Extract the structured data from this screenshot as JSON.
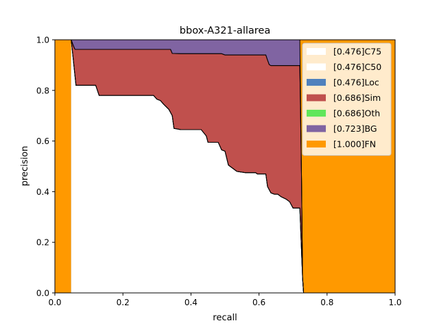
{
  "chart_data": {
    "type": "area",
    "title": "bbox-A321-allarea",
    "xlabel": "recall",
    "ylabel": "precision",
    "xlim": [
      0,
      1
    ],
    "ylim": [
      0,
      1
    ],
    "x_ticks": [
      "0.0",
      "0.2",
      "0.4",
      "0.6",
      "0.8",
      "1.0"
    ],
    "y_ticks": [
      "0.0",
      "0.2",
      "0.4",
      "0.6",
      "0.8",
      "1.0"
    ],
    "grid": false,
    "legend_position": "top-right",
    "series": [
      {
        "name": "[0.476]C75",
        "color": "#ffffff",
        "points": [
          [
            0.048,
            1.0
          ],
          [
            0.062,
            0.82
          ],
          [
            0.12,
            0.82
          ],
          [
            0.13,
            0.78
          ],
          [
            0.29,
            0.78
          ],
          [
            0.3,
            0.765
          ],
          [
            0.31,
            0.76
          ],
          [
            0.32,
            0.745
          ],
          [
            0.335,
            0.725
          ],
          [
            0.345,
            0.7
          ],
          [
            0.35,
            0.65
          ],
          [
            0.37,
            0.645
          ],
          [
            0.43,
            0.645
          ],
          [
            0.445,
            0.62
          ],
          [
            0.45,
            0.595
          ],
          [
            0.48,
            0.595
          ],
          [
            0.49,
            0.565
          ],
          [
            0.5,
            0.56
          ],
          [
            0.51,
            0.505
          ],
          [
            0.525,
            0.49
          ],
          [
            0.535,
            0.48
          ],
          [
            0.56,
            0.475
          ],
          [
            0.59,
            0.475
          ],
          [
            0.595,
            0.47
          ],
          [
            0.62,
            0.47
          ],
          [
            0.625,
            0.42
          ],
          [
            0.635,
            0.395
          ],
          [
            0.645,
            0.39
          ],
          [
            0.655,
            0.39
          ],
          [
            0.665,
            0.38
          ],
          [
            0.68,
            0.37
          ],
          [
            0.69,
            0.36
          ],
          [
            0.7,
            0.335
          ],
          [
            0.72,
            0.335
          ],
          [
            0.728,
            0.06
          ],
          [
            0.731,
            0.0
          ]
        ]
      },
      {
        "name": "[0.476]C50",
        "color": "#ffffff",
        "points": [
          [
            0.048,
            1.0
          ],
          [
            0.062,
            0.82
          ],
          [
            0.12,
            0.82
          ],
          [
            0.13,
            0.78
          ],
          [
            0.29,
            0.78
          ],
          [
            0.3,
            0.765
          ],
          [
            0.31,
            0.76
          ],
          [
            0.32,
            0.745
          ],
          [
            0.335,
            0.725
          ],
          [
            0.345,
            0.7
          ],
          [
            0.35,
            0.65
          ],
          [
            0.37,
            0.645
          ],
          [
            0.43,
            0.645
          ],
          [
            0.445,
            0.62
          ],
          [
            0.45,
            0.595
          ],
          [
            0.48,
            0.595
          ],
          [
            0.49,
            0.565
          ],
          [
            0.5,
            0.56
          ],
          [
            0.51,
            0.505
          ],
          [
            0.525,
            0.49
          ],
          [
            0.535,
            0.48
          ],
          [
            0.56,
            0.475
          ],
          [
            0.59,
            0.475
          ],
          [
            0.595,
            0.47
          ],
          [
            0.62,
            0.47
          ],
          [
            0.625,
            0.42
          ],
          [
            0.635,
            0.395
          ],
          [
            0.645,
            0.39
          ],
          [
            0.655,
            0.39
          ],
          [
            0.665,
            0.38
          ],
          [
            0.68,
            0.37
          ],
          [
            0.69,
            0.36
          ],
          [
            0.7,
            0.335
          ],
          [
            0.72,
            0.335
          ],
          [
            0.728,
            0.06
          ],
          [
            0.731,
            0.0
          ]
        ]
      },
      {
        "name": "[0.476]Loc",
        "color": "#4f81bd",
        "points": [
          [
            0.048,
            1.0
          ],
          [
            0.062,
            0.82
          ],
          [
            0.12,
            0.82
          ],
          [
            0.13,
            0.78
          ],
          [
            0.29,
            0.78
          ],
          [
            0.3,
            0.765
          ],
          [
            0.31,
            0.76
          ],
          [
            0.32,
            0.745
          ],
          [
            0.335,
            0.725
          ],
          [
            0.345,
            0.7
          ],
          [
            0.35,
            0.65
          ],
          [
            0.37,
            0.645
          ],
          [
            0.43,
            0.645
          ],
          [
            0.445,
            0.62
          ],
          [
            0.45,
            0.595
          ],
          [
            0.48,
            0.595
          ],
          [
            0.49,
            0.565
          ],
          [
            0.5,
            0.56
          ],
          [
            0.51,
            0.505
          ],
          [
            0.525,
            0.49
          ],
          [
            0.535,
            0.48
          ],
          [
            0.56,
            0.475
          ],
          [
            0.59,
            0.475
          ],
          [
            0.595,
            0.47
          ],
          [
            0.62,
            0.47
          ],
          [
            0.625,
            0.42
          ],
          [
            0.635,
            0.395
          ],
          [
            0.645,
            0.39
          ],
          [
            0.655,
            0.39
          ],
          [
            0.665,
            0.38
          ],
          [
            0.68,
            0.37
          ],
          [
            0.69,
            0.36
          ],
          [
            0.7,
            0.335
          ],
          [
            0.72,
            0.335
          ],
          [
            0.728,
            0.06
          ],
          [
            0.731,
            0.0
          ]
        ]
      },
      {
        "name": "[0.686]Sim",
        "color": "#c0504d",
        "points": [
          [
            0.048,
            1.0
          ],
          [
            0.052,
            0.985
          ],
          [
            0.058,
            0.965
          ],
          [
            0.06,
            0.962
          ],
          [
            0.34,
            0.962
          ],
          [
            0.345,
            0.946
          ],
          [
            0.37,
            0.945
          ],
          [
            0.49,
            0.945
          ],
          [
            0.5,
            0.94
          ],
          [
            0.62,
            0.94
          ],
          [
            0.625,
            0.92
          ],
          [
            0.63,
            0.902
          ],
          [
            0.635,
            0.898
          ],
          [
            0.72,
            0.898
          ],
          [
            0.725,
            0.45
          ],
          [
            0.728,
            0.06
          ],
          [
            0.731,
            0.0
          ]
        ]
      },
      {
        "name": "[0.686]Oth",
        "color": "#61e65a",
        "points": [
          [
            0.048,
            1.0
          ],
          [
            0.052,
            0.985
          ],
          [
            0.058,
            0.965
          ],
          [
            0.06,
            0.962
          ],
          [
            0.34,
            0.962
          ],
          [
            0.345,
            0.946
          ],
          [
            0.37,
            0.945
          ],
          [
            0.49,
            0.945
          ],
          [
            0.5,
            0.94
          ],
          [
            0.62,
            0.94
          ],
          [
            0.625,
            0.92
          ],
          [
            0.63,
            0.902
          ],
          [
            0.635,
            0.898
          ],
          [
            0.72,
            0.898
          ],
          [
            0.725,
            0.45
          ],
          [
            0.728,
            0.06
          ],
          [
            0.731,
            0.0
          ]
        ]
      },
      {
        "name": "[0.723]BG",
        "color": "#8064a2",
        "points": [
          [
            0.048,
            1.0
          ],
          [
            0.72,
            1.0
          ],
          [
            0.725,
            0.45
          ],
          [
            0.728,
            0.06
          ],
          [
            0.731,
            0.0
          ]
        ]
      },
      {
        "name": "[1.000]FN",
        "color": "#ff9900",
        "points": [
          [
            0.0,
            1.0
          ],
          [
            1.0,
            1.0
          ]
        ]
      }
    ]
  }
}
